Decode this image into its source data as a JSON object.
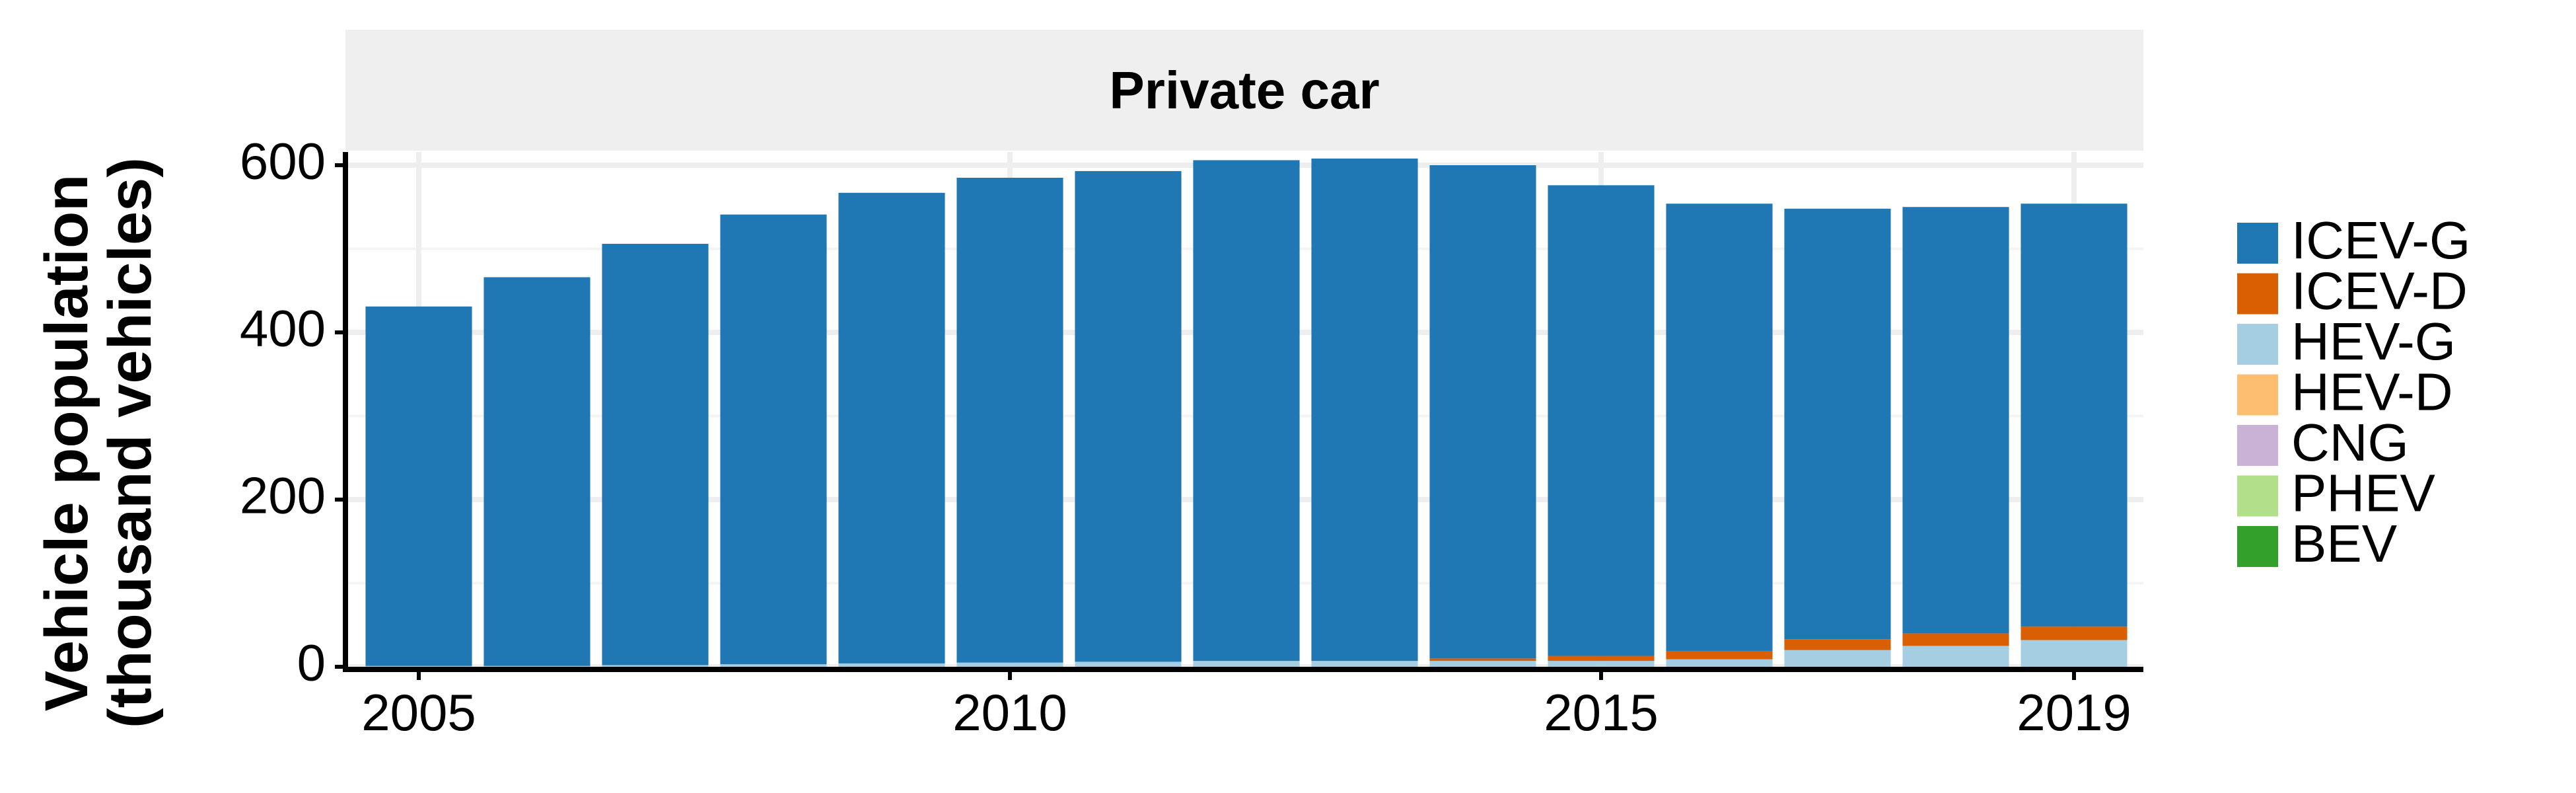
{
  "chart_data": {
    "type": "bar",
    "stacked": true,
    "panel_title": "Private car",
    "ylabel": "Vehicle population\n(thousand vehicles)",
    "ylabel_lines": [
      "Vehicle population",
      "(thousand vehicles)"
    ],
    "xlabel": "",
    "ylim": [
      0,
      600
    ],
    "yticks": [
      0,
      200,
      400,
      600
    ],
    "xtick_years": [
      2005,
      2010,
      2015,
      2019
    ],
    "categories": [
      2005,
      2006,
      2007,
      2008,
      2009,
      2010,
      2011,
      2012,
      2013,
      2014,
      2015,
      2016,
      2017,
      2018,
      2019
    ],
    "grid": true,
    "legend_position": "right",
    "series": [
      {
        "name": "BEV",
        "color": "#33a02c",
        "values": [
          0,
          0,
          0,
          0,
          0,
          0,
          0,
          0,
          0,
          0,
          0,
          0,
          0,
          0,
          0
        ]
      },
      {
        "name": "PHEV",
        "color": "#b2df8a",
        "values": [
          0,
          0,
          0,
          0,
          0,
          0,
          0,
          0,
          0,
          0,
          0,
          0,
          0,
          0,
          0
        ]
      },
      {
        "name": "CNG",
        "color": "#cab2d6",
        "values": [
          0,
          0,
          0,
          0,
          0,
          0,
          0,
          0,
          0,
          0,
          0,
          0,
          0,
          0,
          0
        ]
      },
      {
        "name": "HEV-D",
        "color": "#fdbf6f",
        "values": [
          0,
          0,
          0,
          0,
          0,
          0,
          0,
          0,
          0,
          0,
          0,
          0,
          0,
          0,
          0
        ]
      },
      {
        "name": "HEV-G",
        "color": "#a6cee3",
        "values": [
          1,
          1,
          2,
          3,
          4,
          5,
          6,
          7,
          7,
          7,
          7,
          9,
          20,
          25,
          32
        ]
      },
      {
        "name": "ICEV-D",
        "color": "#d95f02",
        "values": [
          0,
          0,
          0,
          0,
          0,
          0,
          0,
          0,
          0,
          3,
          6,
          10,
          13,
          15,
          16
        ]
      },
      {
        "name": "ICEV-G",
        "color": "#1f78b4",
        "values": [
          430,
          465,
          504,
          538,
          563,
          580,
          587,
          599,
          601,
          590,
          563,
          535,
          515,
          510,
          506
        ]
      }
    ],
    "legend_order": [
      "ICEV-G",
      "ICEV-D",
      "HEV-G",
      "HEV-D",
      "CNG",
      "PHEV",
      "BEV"
    ]
  }
}
